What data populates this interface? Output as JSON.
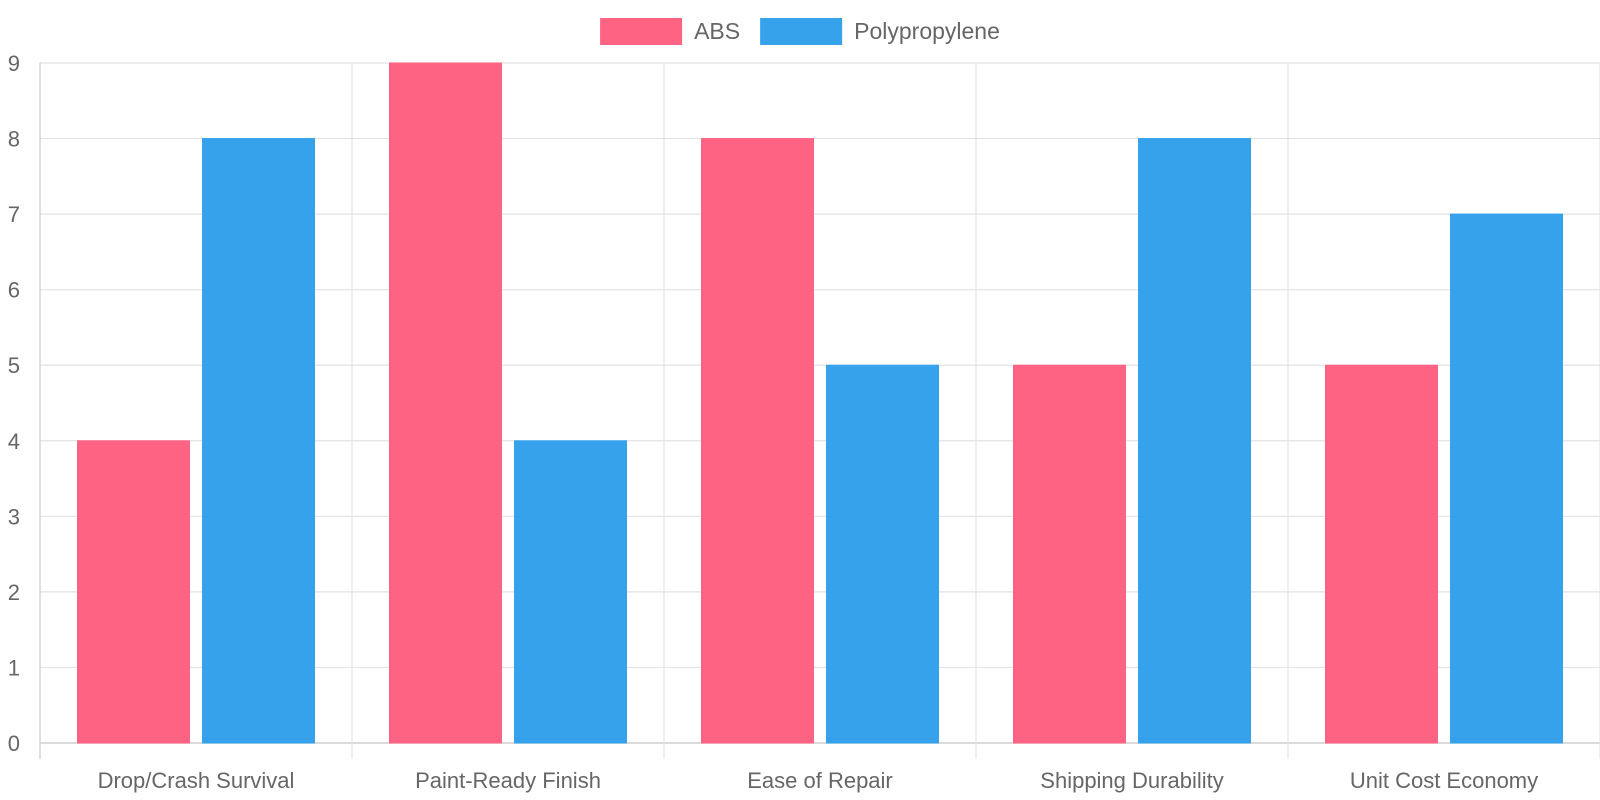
{
  "chart_data": {
    "type": "bar",
    "categories": [
      "Drop/Crash Survival",
      "Paint-Ready Finish",
      "Ease of Repair",
      "Shipping Durability",
      "Unit Cost Economy"
    ],
    "series": [
      {
        "name": "ABS",
        "values": [
          4,
          9,
          8,
          5,
          5
        ],
        "color": "#FF6384"
      },
      {
        "name": "Polypropylene",
        "values": [
          8,
          4,
          5,
          8,
          7
        ],
        "color": "#36A2EB"
      }
    ],
    "y_ticks": [
      "0",
      "1",
      "2",
      "3",
      "4",
      "5",
      "6",
      "7",
      "8",
      "9"
    ],
    "ylim": [
      0,
      9
    ],
    "grid": true,
    "legend_position": "top-center",
    "title": "",
    "xlabel": "",
    "ylabel": ""
  }
}
